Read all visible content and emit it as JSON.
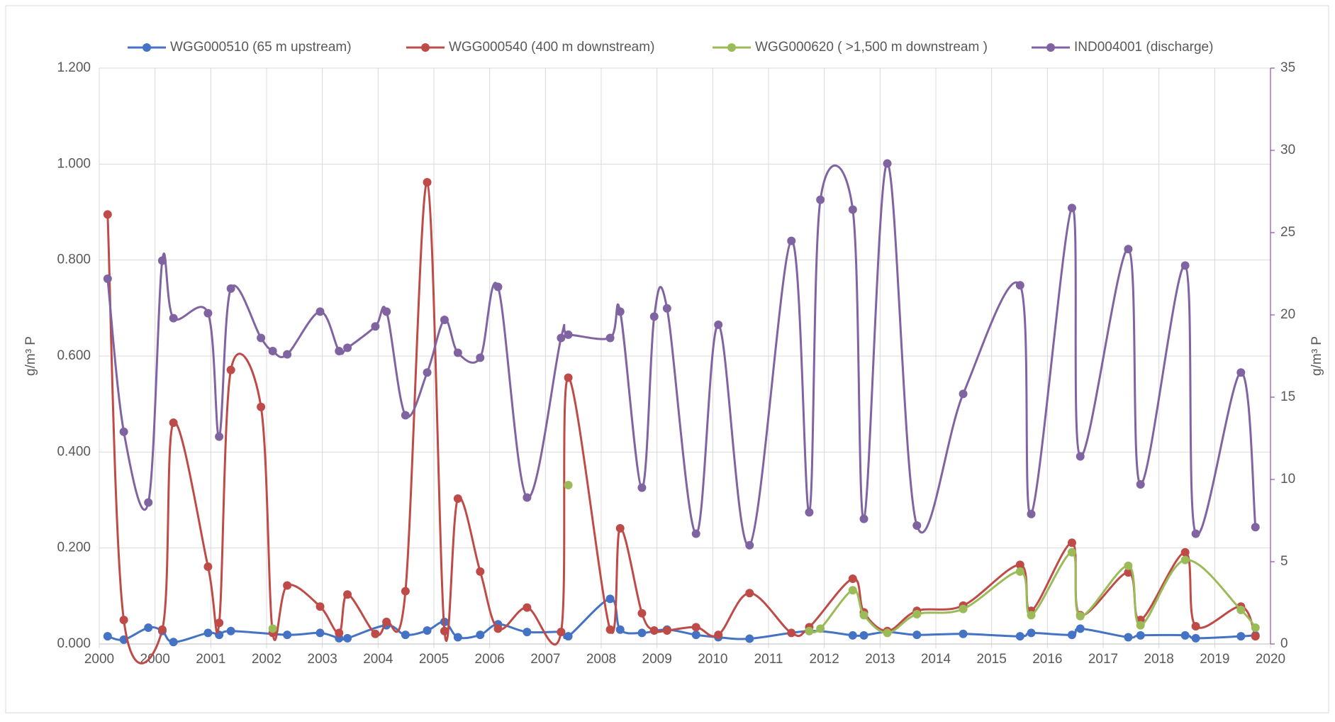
{
  "chart_data": {
    "type": "line",
    "xlim": [
      2000,
      2021
    ],
    "xticks": [
      2000,
      {
        "value": 2001,
        "label": "2000"
      },
      {
        "value": 2002,
        "label": "2001"
      },
      {
        "value": 2003,
        "label": "2002"
      },
      {
        "value": 2004,
        "label": "2003"
      },
      {
        "value": 2005,
        "label": "2004"
      },
      {
        "value": 2006,
        "label": "2005"
      },
      {
        "value": 2007,
        "label": "2006"
      },
      {
        "value": 2008,
        "label": "2007"
      },
      {
        "value": 2009,
        "label": "2008"
      },
      {
        "value": 2010,
        "label": "2009"
      },
      {
        "value": 2011,
        "label": "2010"
      },
      {
        "value": 2012,
        "label": "2011"
      },
      {
        "value": 2013,
        "label": "2012"
      },
      {
        "value": 2014,
        "label": "2013"
      },
      {
        "value": 2015,
        "label": "2014"
      },
      {
        "value": 2016,
        "label": "2015"
      },
      {
        "value": 2017,
        "label": "2016"
      },
      {
        "value": 2018,
        "label": "2017"
      },
      {
        "value": 2019,
        "label": "2018"
      },
      {
        "value": 2020,
        "label": "2019"
      },
      {
        "value": 2021,
        "label": "2020"
      }
    ],
    "ylabel": "g/m³ P",
    "ylim": [
      0,
      1.2
    ],
    "yticks": [
      {
        "value": 0,
        "label": "0.000"
      },
      {
        "value": 0.2,
        "label": "0.200"
      },
      {
        "value": 0.4,
        "label": "0.400"
      },
      {
        "value": 0.6,
        "label": "0.600"
      },
      {
        "value": 0.8,
        "label": "0.800"
      },
      {
        "value": 1.0,
        "label": "1.000"
      },
      {
        "value": 1.2,
        "label": "1.200"
      }
    ],
    "y2label": "g/m³ P",
    "y2lim": [
      0,
      35
    ],
    "y2ticks": [
      0,
      5,
      10,
      15,
      20,
      25,
      30,
      35
    ],
    "y2color": "#7030a0",
    "grid": true,
    "legend": "top",
    "series": [
      {
        "name": "WGG000510 (65 m upstream)",
        "color": "#4472c4",
        "x": [
          2000.15,
          2000.44,
          2000.88,
          2001.13,
          2001.33,
          2001.95,
          2002.15,
          2002.36,
          2003.37,
          2003.96,
          2004.3,
          2004.45,
          2005.15,
          2005.49,
          2005.88,
          2006.19,
          2006.43,
          2006.83,
          2007.15,
          2007.67,
          2008.28,
          2008.41,
          2009.16,
          2009.34,
          2009.73,
          2010.18,
          2010.7,
          2011.1,
          2011.66,
          2012.73,
          2013.51,
          2013.71,
          2014.13,
          2014.66,
          2015.49,
          2016.51,
          2016.71,
          2017.44,
          2017.59,
          2018.45,
          2018.67,
          2019.47,
          2019.66,
          2020.47,
          2020.73
        ],
        "values": [
          0.016,
          0.009,
          0.034,
          0.027,
          0.004,
          0.023,
          0.019,
          0.027,
          0.019,
          0.023,
          0.012,
          0.012,
          0.039,
          0.019,
          0.028,
          0.046,
          0.014,
          0.019,
          0.041,
          0.025,
          0.025,
          0.016,
          0.094,
          0.03,
          0.023,
          0.03,
          0.019,
          0.014,
          0.011,
          0.027,
          0.018,
          0.018,
          0.025,
          0.019,
          0.021,
          0.016,
          0.023,
          0.019,
          0.032,
          0.014,
          0.018,
          0.018,
          0.012,
          0.016,
          0.018
        ]
      },
      {
        "name": "WGG000540 (400 m downstream)",
        "color": "#be4b48",
        "x": [
          2000.15,
          2000.44,
          2001.13,
          2001.33,
          2001.95,
          2002.15,
          2002.36,
          2002.9,
          2003.11,
          2003.37,
          2003.96,
          2004.3,
          2004.45,
          2004.95,
          2005.15,
          2005.49,
          2005.88,
          2006.19,
          2006.43,
          2006.83,
          2007.15,
          2007.67,
          2008.28,
          2008.41,
          2009.16,
          2009.34,
          2009.73,
          2009.95,
          2010.18,
          2010.7,
          2011.1,
          2011.66,
          2012.41,
          2012.73,
          2013.51,
          2013.71,
          2014.13,
          2014.66,
          2015.49,
          2016.51,
          2016.71,
          2017.44,
          2017.59,
          2018.45,
          2018.67,
          2019.47,
          2019.66,
          2020.47,
          2020.73
        ],
        "values": [
          0.895,
          0.05,
          0.03,
          0.461,
          0.161,
          0.044,
          0.571,
          0.494,
          0.023,
          0.122,
          0.078,
          0.023,
          0.103,
          0.021,
          0.046,
          0.11,
          0.962,
          0.027,
          0.303,
          0.151,
          0.032,
          0.076,
          0.025,
          0.555,
          0.03,
          0.241,
          0.064,
          0.028,
          0.028,
          0.035,
          0.019,
          0.106,
          0.023,
          0.035,
          0.136,
          0.066,
          0.027,
          0.069,
          0.08,
          0.165,
          0.069,
          0.211,
          0.06,
          0.149,
          0.05,
          0.191,
          0.037,
          0.078,
          0.016
        ]
      },
      {
        "name": "WGG000620 ( >1,500 m downstream )",
        "color": "#9bbb59",
        "x": [
          2003.11,
          null,
          2008.41,
          null,
          2012.73,
          2012.93,
          2013.51,
          2013.71,
          2014.13,
          2014.66,
          2015.49,
          2016.51,
          2016.71,
          2017.44,
          2017.59,
          2018.45,
          2018.67,
          2019.47,
          2020.47,
          2020.73
        ],
        "values": [
          0.032,
          null,
          0.331,
          null,
          0.027,
          0.032,
          0.112,
          0.06,
          0.023,
          0.062,
          0.073,
          0.151,
          0.06,
          0.191,
          0.058,
          0.163,
          0.039,
          0.175,
          0.071,
          0.034
        ]
      },
      {
        "name": "IND004001 (discharge)",
        "color": "#8064a2",
        "axis": "y2",
        "x": [
          2000.15,
          2000.44,
          2000.88,
          2001.13,
          2001.33,
          2001.95,
          2002.15,
          2002.36,
          2002.9,
          2003.11,
          2003.37,
          2003.96,
          2004.3,
          2004.45,
          2004.95,
          2005.15,
          2005.49,
          2005.88,
          2006.19,
          2006.43,
          2006.83,
          2007.15,
          2007.67,
          2008.28,
          2008.41,
          2009.16,
          2009.34,
          2009.73,
          2009.95,
          2010.18,
          2010.7,
          2011.1,
          2011.66,
          2012.41,
          2012.73,
          2012.93,
          2013.51,
          2013.71,
          2014.13,
          2014.66,
          2015.49,
          2016.51,
          2016.71,
          2017.44,
          2017.59,
          2018.45,
          2018.67,
          2019.47,
          2019.66,
          2020.47,
          2020.73
        ],
        "values": [
          22.2,
          12.9,
          8.6,
          23.3,
          19.8,
          20.1,
          12.6,
          21.6,
          18.6,
          17.8,
          17.6,
          20.2,
          17.8,
          18.0,
          19.3,
          20.2,
          13.9,
          16.5,
          19.7,
          17.7,
          17.4,
          21.7,
          8.9,
          18.6,
          18.8,
          18.6,
          20.2,
          9.5,
          19.9,
          20.4,
          6.7,
          19.4,
          6.0,
          24.5,
          8.0,
          27.0,
          26.4,
          7.6,
          29.2,
          7.2,
          15.2,
          21.8,
          7.9,
          26.5,
          11.4,
          24.0,
          9.7,
          23.0,
          6.7,
          16.5,
          7.1
        ]
      }
    ]
  }
}
